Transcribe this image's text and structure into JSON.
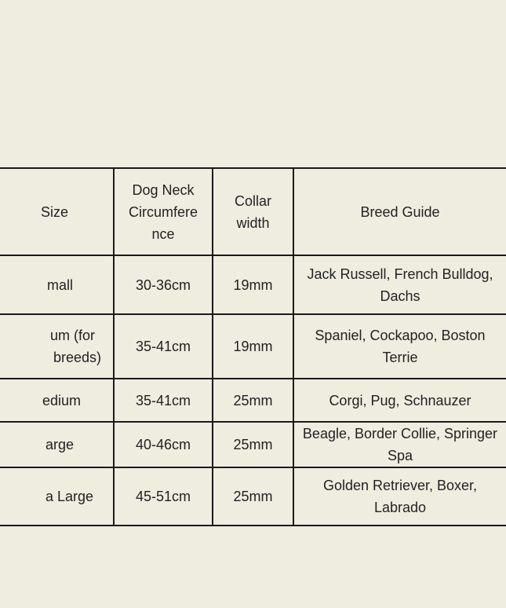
{
  "headers": {
    "size": "Size",
    "neck": [
      "Dog Neck",
      "Circumfere",
      "nce"
    ],
    "width": [
      "Collar",
      "width"
    ],
    "breed": "Breed Guide"
  },
  "rows": [
    {
      "size": [
        "mall"
      ],
      "neck": "30-36cm",
      "width": "19mm",
      "breed": "Jack Russell, French Bulldog, Dachs"
    },
    {
      "size": [
        "um (for",
        "breeds)"
      ],
      "neck": "35-41cm",
      "width": "19mm",
      "breed": "Spaniel, Cockapoo, Boston Terrie"
    },
    {
      "size": [
        "edium"
      ],
      "neck": "35-41cm",
      "width": "25mm",
      "breed": "Corgi, Pug, Schnauzer"
    },
    {
      "size": [
        "arge"
      ],
      "neck": "40-46cm",
      "width": "25mm",
      "breed": "Beagle, Border Collie, Springer Spa"
    },
    {
      "size": [
        "a Large"
      ],
      "neck": "45-51cm",
      "width": "25mm",
      "breed": "Golden Retriever, Boxer, Labrado"
    }
  ]
}
